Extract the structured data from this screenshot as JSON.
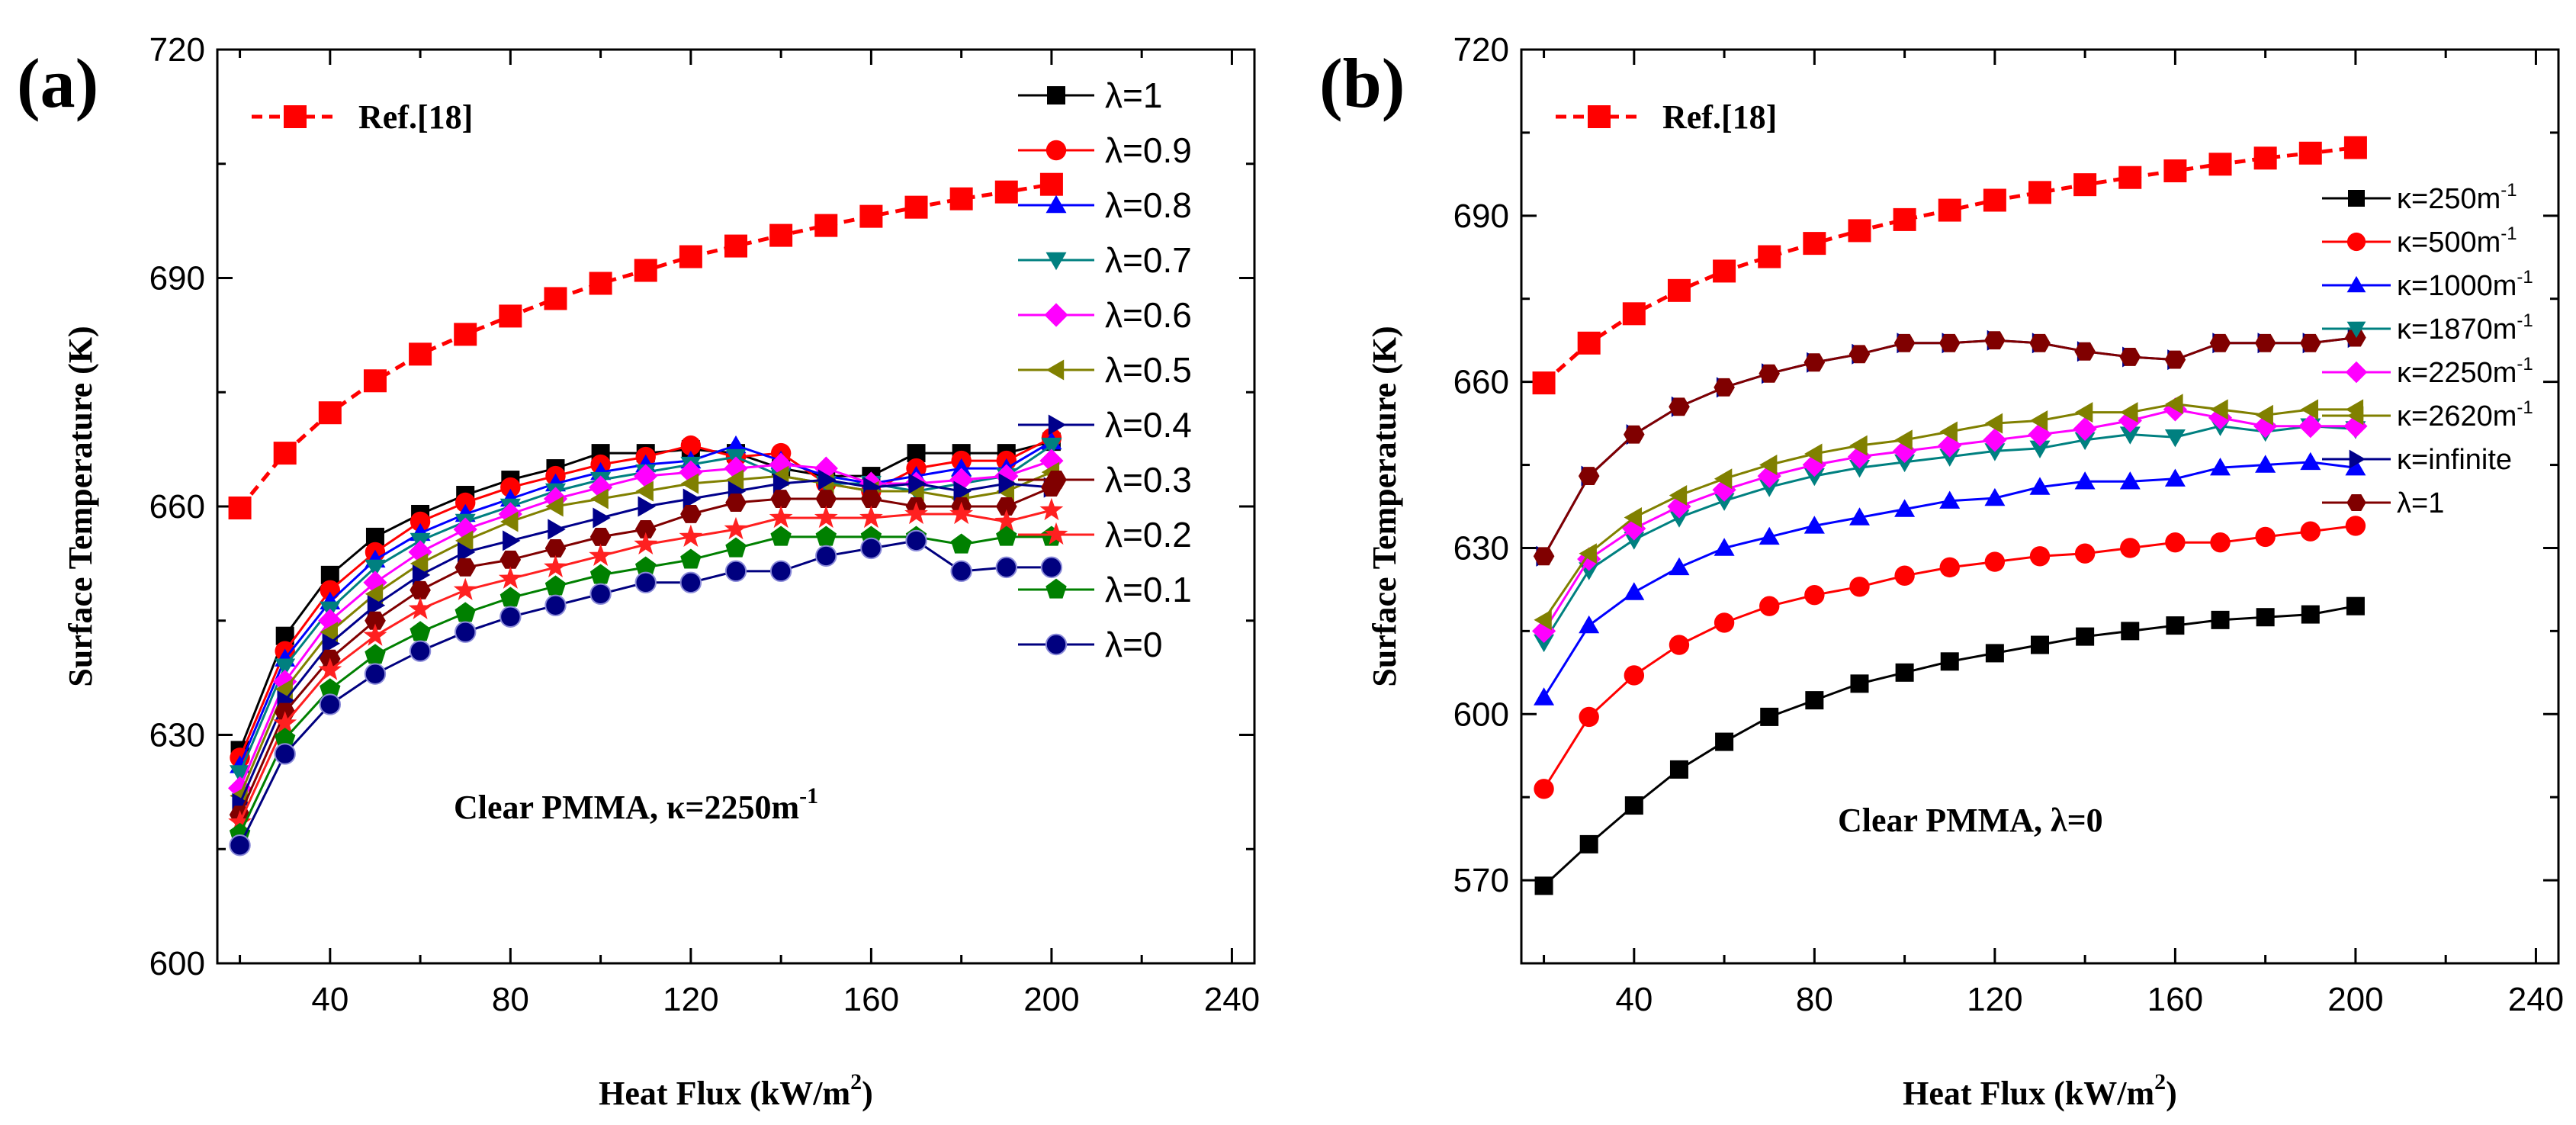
{
  "chart_data": [
    {
      "type": "line",
      "panel_label": "(a)",
      "xlabel_main": "Heat Flux (kW/m",
      "xlabel_sup": "2",
      "xlabel_end": ")",
      "ylabel": "Surface Temperature (K)",
      "xlim": [
        15,
        245
      ],
      "ylim": [
        600,
        720
      ],
      "xticks": [
        40,
        80,
        120,
        160,
        200,
        240
      ],
      "xtick_labels": [
        "40",
        "80",
        "120",
        "160",
        "200",
        "240"
      ],
      "yticks": [
        600,
        630,
        660,
        690,
        720
      ],
      "ytick_labels": [
        "600",
        "630",
        "660",
        "690",
        "720"
      ],
      "annotation_main": "Clear PMMA, κ=2250m",
      "annotation_sup": "-1",
      "x": [
        20,
        30,
        40,
        50,
        60,
        70,
        80,
        90,
        100,
        110,
        120,
        130,
        140,
        150,
        160,
        170,
        180,
        190,
        200
      ],
      "ref_series": {
        "name": "Ref.[18]",
        "color": "#ff0000",
        "marker": "square",
        "dashed": true,
        "values": [
          659.8,
          667.0,
          672.3,
          676.5,
          680.0,
          682.6,
          685.0,
          687.3,
          689.3,
          691.0,
          692.8,
          694.2,
          695.6,
          696.9,
          698.1,
          699.3,
          700.4,
          701.3,
          702.3
        ]
      },
      "series": [
        {
          "name": "λ=1",
          "color": "#000000",
          "marker": "square",
          "values": [
            628,
            643,
            651,
            656,
            659,
            661.5,
            663.5,
            665,
            667,
            667,
            667.5,
            667,
            665,
            664,
            664,
            667,
            667,
            667,
            668.5
          ]
        },
        {
          "name": "λ=0.9",
          "color": "#ff0000",
          "marker": "circle",
          "values": [
            627,
            641,
            649,
            654,
            658,
            660.5,
            662.5,
            664,
            665.5,
            666.5,
            668,
            666.5,
            667,
            663,
            662,
            665,
            666,
            666,
            669
          ]
        },
        {
          "name": "λ=0.8",
          "color": "#0000ff",
          "marker": "triangle-up",
          "values": [
            626,
            640,
            647.5,
            653,
            656.5,
            659,
            661,
            663,
            664.5,
            665.5,
            666,
            668,
            666,
            664,
            663,
            664,
            665,
            665,
            668.5
          ]
        },
        {
          "name": "λ=0.7",
          "color": "#008080",
          "marker": "triangle-down",
          "values": [
            625,
            639,
            646.5,
            652,
            655.5,
            658,
            660,
            662,
            663.5,
            664.5,
            665.5,
            666.5,
            664,
            663,
            663,
            662,
            663,
            664,
            668
          ]
        },
        {
          "name": "λ=0.6",
          "color": "#ff00ff",
          "marker": "diamond",
          "values": [
            623,
            637,
            645,
            650,
            654,
            657,
            659,
            661,
            662.5,
            664,
            664.5,
            665,
            665.5,
            665,
            663,
            663,
            663.5,
            664,
            666
          ]
        },
        {
          "name": "λ=0.5",
          "color": "#808000",
          "marker": "triangle-left",
          "values": [
            622,
            636,
            643.5,
            648.5,
            652.5,
            655.5,
            658,
            660,
            661,
            662,
            663,
            663.5,
            664,
            663,
            662,
            662,
            661,
            662,
            664.5
          ]
        },
        {
          "name": "λ=0.4",
          "color": "#00008b",
          "marker": "triangle-right",
          "values": [
            621,
            634.5,
            642,
            647,
            651,
            654,
            655.5,
            657,
            658.5,
            660,
            661,
            662,
            663,
            663.5,
            662.5,
            663,
            662,
            663,
            662.5
          ]
        },
        {
          "name": "λ=0.3",
          "color": "#800000",
          "marker": "hexagon",
          "values": [
            619.5,
            633,
            640,
            645,
            649,
            652,
            653,
            654.5,
            656,
            657,
            659,
            660.5,
            661,
            661,
            661,
            660,
            660,
            660,
            662.5
          ]
        },
        {
          "name": "λ=0.2",
          "color": "#ff2020",
          "marker": "star",
          "values": [
            618.5,
            631.5,
            638.5,
            643,
            646.5,
            649,
            650.5,
            652,
            653.5,
            655,
            656,
            657,
            658.5,
            658.5,
            658.5,
            659,
            659,
            658,
            659.5
          ]
        },
        {
          "name": "λ=0.1",
          "color": "#008000",
          "marker": "pentagon",
          "values": [
            617,
            629.5,
            636,
            640.5,
            643.5,
            646,
            648,
            649.5,
            651,
            652,
            653,
            654.5,
            656,
            656,
            656,
            656,
            655,
            656,
            656
          ]
        },
        {
          "name": "λ=0",
          "color": "#00007f",
          "marker": "sphere",
          "values": [
            615.5,
            627.5,
            634,
            638,
            641,
            643.5,
            645.5,
            647,
            648.5,
            650,
            650,
            651.5,
            651.5,
            653.5,
            654.5,
            655.5,
            651.5,
            652,
            652
          ]
        }
      ]
    },
    {
      "type": "line",
      "panel_label": "(b)",
      "xlabel_main": "Heat Flux (kW/m",
      "xlabel_sup": "2",
      "xlabel_end": ")",
      "ylabel": "Surface Temperature (K)",
      "xlim": [
        15,
        245
      ],
      "ylim": [
        555,
        720
      ],
      "xticks": [
        40,
        80,
        120,
        160,
        200,
        240
      ],
      "xtick_labels": [
        "40",
        "80",
        "120",
        "160",
        "200",
        "240"
      ],
      "yticks": [
        570,
        600,
        630,
        660,
        690,
        720
      ],
      "ytick_labels": [
        "570",
        "600",
        "630",
        "660",
        "690",
        "720"
      ],
      "annotation_main": "Clear PMMA,  λ=0",
      "annotation_sup": "",
      "x": [
        20,
        30,
        40,
        50,
        60,
        70,
        80,
        90,
        100,
        110,
        120,
        130,
        140,
        150,
        160,
        170,
        180,
        190,
        200
      ],
      "ref_series": {
        "name": "Ref.[18]",
        "color": "#ff0000",
        "marker": "square",
        "dashed": true,
        "values": [
          659.8,
          667.0,
          672.3,
          676.5,
          680.0,
          682.6,
          685.0,
          687.3,
          689.3,
          691.0,
          692.8,
          694.2,
          695.6,
          696.9,
          698.1,
          699.3,
          700.4,
          701.3,
          702.3
        ]
      },
      "series": [
        {
          "name": "κ=250m",
          "sup": "-1",
          "color": "#000000",
          "marker": "square",
          "values": [
            569,
            576.5,
            583.5,
            590,
            595,
            599.5,
            602.5,
            605.5,
            607.5,
            609.5,
            611,
            612.5,
            614,
            615,
            616,
            617,
            617.5,
            618,
            619.5
          ]
        },
        {
          "name": "κ=500m",
          "sup": "-1",
          "color": "#ff0000",
          "marker": "circle",
          "values": [
            586.5,
            599.5,
            607,
            612.5,
            616.5,
            619.5,
            621.5,
            623,
            625,
            626.5,
            627.5,
            628.5,
            629,
            630,
            631,
            631,
            632,
            633,
            634
          ]
        },
        {
          "name": "κ=1000m",
          "sup": "-1",
          "color": "#0000ff",
          "marker": "triangle-up",
          "values": [
            603,
            616,
            622,
            626.5,
            630,
            632,
            634,
            635.5,
            637,
            638.5,
            639,
            641,
            642,
            642,
            642.5,
            644.5,
            645,
            645.5,
            644.5
          ]
        },
        {
          "name": "κ=1870m",
          "sup": "-1",
          "color": "#008080",
          "marker": "triangle-down",
          "values": [
            613,
            626,
            631.5,
            635.5,
            638.5,
            641,
            643,
            644.5,
            645.5,
            646.5,
            647.5,
            648,
            649.5,
            650.5,
            650,
            652,
            651,
            652,
            651.5
          ]
        },
        {
          "name": "κ=2250m",
          "sup": "-1",
          "color": "#ff00ff",
          "marker": "diamond",
          "values": [
            615,
            628,
            633.5,
            637.5,
            640.5,
            643,
            645,
            646.5,
            647.5,
            648.5,
            649.5,
            650.5,
            651.5,
            653,
            655,
            653.5,
            652,
            652,
            652
          ]
        },
        {
          "name": "κ=2620m",
          "sup": "-1",
          "color": "#808000",
          "marker": "triangle-left",
          "values": [
            617,
            629,
            635.5,
            639.5,
            642.5,
            645,
            647,
            648.5,
            649.5,
            651,
            652.5,
            653,
            654.5,
            654.5,
            656,
            655,
            654,
            655,
            655
          ]
        },
        {
          "name": "κ=infinite",
          "sup": "",
          "color": "#00008b",
          "marker": "triangle-right",
          "values": [
            628.5,
            643,
            650.5,
            655.5,
            659,
            661.5,
            663.5,
            665,
            667,
            667,
            667.5,
            667,
            665.5,
            664.5,
            664,
            667,
            667,
            667,
            668
          ]
        },
        {
          "name": "λ=1",
          "sup": "",
          "color": "#800000",
          "marker": "hexagon",
          "values": [
            628.5,
            643,
            650.5,
            655.5,
            659,
            661.5,
            663.5,
            665,
            667,
            667,
            667.5,
            667,
            665.5,
            664.5,
            664,
            667,
            667,
            667,
            668
          ]
        }
      ]
    }
  ]
}
